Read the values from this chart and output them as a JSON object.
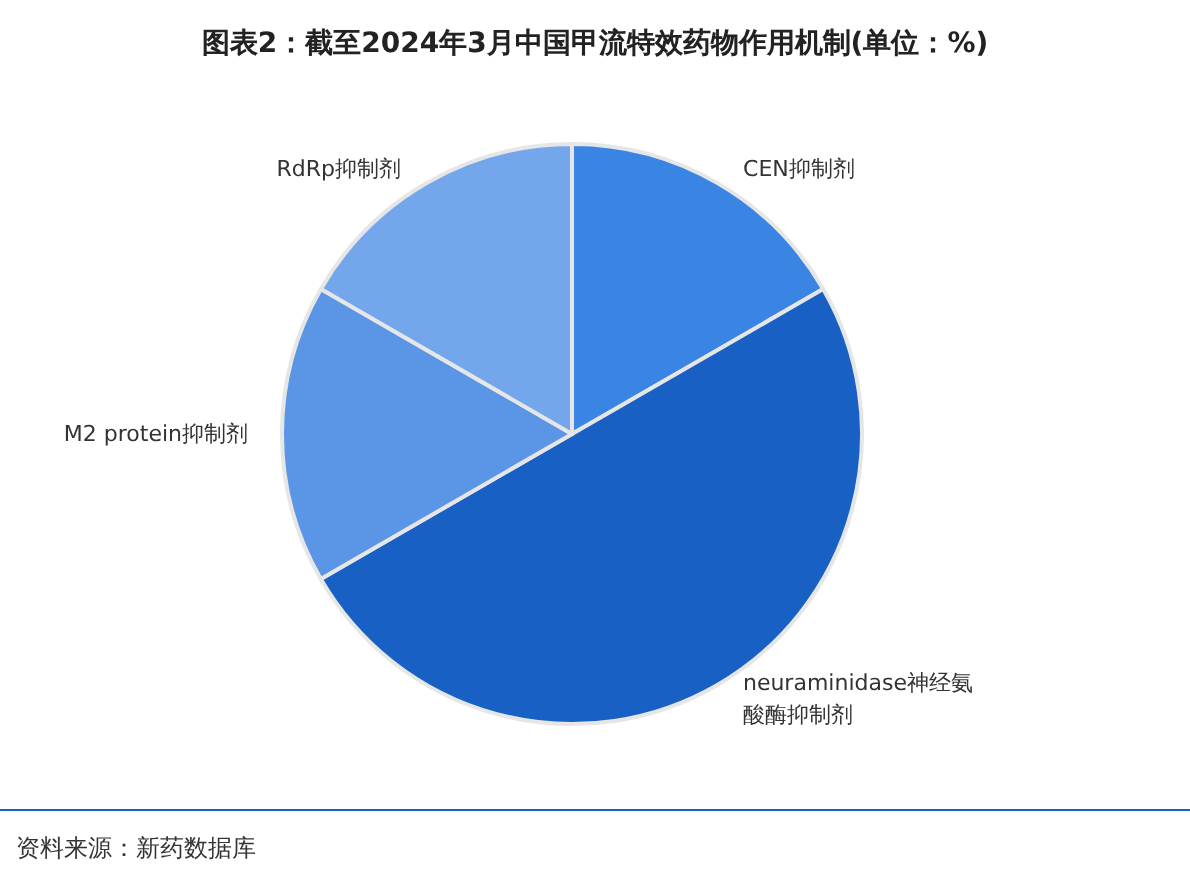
{
  "chart_data": {
    "type": "pie",
    "title": "图表2：截至2024年3月中国甲流特效药物作用机制(单位：%)",
    "categories": [
      "CEN抑制剂",
      "neuraminidase神经氨酸酶抑制剂",
      "M2 protein抑制剂",
      "RdRp抑制剂"
    ],
    "values": [
      16.67,
      50,
      16.67,
      16.66
    ],
    "colors": [
      "#3a84e4",
      "#1860c4",
      "#5b96e6",
      "#74a6ec"
    ],
    "legend": false,
    "annotations": [
      "资料来源：新药数据库"
    ]
  }
}
